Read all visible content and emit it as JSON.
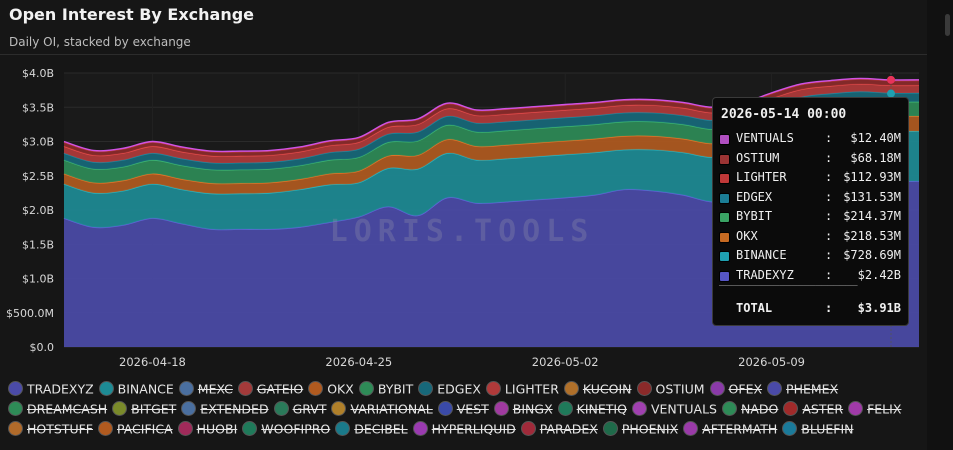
{
  "header": {
    "title": "Open Interest By Exchange",
    "subtitle": "Daily OI, stacked by exchange"
  },
  "watermark": "LORIS.TOOLS",
  "chart_data": {
    "type": "area",
    "stacked": true,
    "x_tick_labels": [
      "2026-04-18",
      "2026-04-25",
      "2026-05-02",
      "2026-05-09"
    ],
    "y_tick_labels": [
      "$0.0",
      "$500.0M",
      "$1.0B",
      "$1.5B",
      "$2.0B",
      "$2.5B",
      "$3.0B",
      "$3.5B",
      "$4.0B"
    ],
    "ylim": [
      0,
      4.0
    ],
    "y_unit": "B",
    "x": [
      "2026-04-15",
      "2026-04-16",
      "2026-04-17",
      "2026-04-18",
      "2026-04-19",
      "2026-04-20",
      "2026-04-21",
      "2026-04-22",
      "2026-04-23",
      "2026-04-24",
      "2026-04-25",
      "2026-04-26",
      "2026-04-27",
      "2026-04-28",
      "2026-04-29",
      "2026-04-30",
      "2026-05-01",
      "2026-05-02",
      "2026-05-03",
      "2026-05-04",
      "2026-05-05",
      "2026-05-06",
      "2026-05-07",
      "2026-05-08",
      "2026-05-09",
      "2026-05-10",
      "2026-05-11",
      "2026-05-12",
      "2026-05-13",
      "2026-05-14"
    ],
    "series": [
      {
        "name": "TRADEXYZ",
        "color": "#4b4ba8",
        "values": [
          1.88,
          1.75,
          1.78,
          1.88,
          1.8,
          1.72,
          1.72,
          1.72,
          1.75,
          1.82,
          1.9,
          2.05,
          1.92,
          2.18,
          2.1,
          2.12,
          2.15,
          2.18,
          2.22,
          2.3,
          2.28,
          2.22,
          2.12,
          2.18,
          2.32,
          2.4,
          2.42,
          2.44,
          2.42,
          2.42
        ]
      },
      {
        "name": "BINANCE",
        "color": "#1d8b95",
        "values": [
          0.5,
          0.5,
          0.5,
          0.5,
          0.5,
          0.52,
          0.52,
          0.53,
          0.55,
          0.55,
          0.5,
          0.56,
          0.68,
          0.65,
          0.63,
          0.63,
          0.63,
          0.63,
          0.62,
          0.58,
          0.6,
          0.62,
          0.65,
          0.65,
          0.65,
          0.7,
          0.72,
          0.73,
          0.73,
          0.73
        ]
      },
      {
        "name": "OKX",
        "color": "#b05a1f",
        "values": [
          0.15,
          0.15,
          0.15,
          0.15,
          0.15,
          0.15,
          0.15,
          0.15,
          0.15,
          0.16,
          0.17,
          0.18,
          0.2,
          0.2,
          0.2,
          0.2,
          0.2,
          0.2,
          0.2,
          0.2,
          0.2,
          0.2,
          0.2,
          0.2,
          0.21,
          0.21,
          0.22,
          0.22,
          0.22,
          0.22
        ]
      },
      {
        "name": "BYBIT",
        "color": "#2e8b57",
        "values": [
          0.2,
          0.2,
          0.2,
          0.2,
          0.2,
          0.2,
          0.2,
          0.2,
          0.2,
          0.2,
          0.2,
          0.2,
          0.21,
          0.21,
          0.21,
          0.21,
          0.21,
          0.21,
          0.21,
          0.21,
          0.21,
          0.21,
          0.21,
          0.21,
          0.21,
          0.21,
          0.21,
          0.21,
          0.21,
          0.21
        ]
      },
      {
        "name": "EDGEX",
        "color": "#17687a",
        "values": [
          0.1,
          0.1,
          0.1,
          0.1,
          0.1,
          0.1,
          0.1,
          0.1,
          0.1,
          0.11,
          0.12,
          0.12,
          0.13,
          0.13,
          0.13,
          0.13,
          0.13,
          0.13,
          0.13,
          0.13,
          0.13,
          0.13,
          0.13,
          0.13,
          0.13,
          0.13,
          0.13,
          0.13,
          0.13,
          0.13
        ]
      },
      {
        "name": "LIGHTER",
        "color": "#b03a3a",
        "values": [
          0.1,
          0.1,
          0.1,
          0.1,
          0.1,
          0.1,
          0.1,
          0.1,
          0.1,
          0.1,
          0.1,
          0.1,
          0.11,
          0.11,
          0.11,
          0.11,
          0.11,
          0.11,
          0.11,
          0.11,
          0.11,
          0.11,
          0.11,
          0.11,
          0.11,
          0.11,
          0.11,
          0.11,
          0.11,
          0.11
        ]
      },
      {
        "name": "OSTIUM",
        "color": "#8b2a2a",
        "values": [
          0.06,
          0.06,
          0.06,
          0.06,
          0.06,
          0.06,
          0.06,
          0.06,
          0.06,
          0.06,
          0.06,
          0.06,
          0.07,
          0.07,
          0.07,
          0.07,
          0.07,
          0.07,
          0.07,
          0.07,
          0.07,
          0.07,
          0.07,
          0.07,
          0.07,
          0.07,
          0.07,
          0.07,
          0.07,
          0.07
        ]
      },
      {
        "name": "VENTUALS",
        "color": "#a040b0",
        "values": [
          0.01,
          0.01,
          0.01,
          0.01,
          0.01,
          0.01,
          0.01,
          0.01,
          0.01,
          0.01,
          0.01,
          0.01,
          0.01,
          0.01,
          0.01,
          0.01,
          0.01,
          0.01,
          0.01,
          0.01,
          0.01,
          0.01,
          0.01,
          0.01,
          0.01,
          0.01,
          0.01,
          0.01,
          0.01,
          0.01
        ]
      }
    ],
    "tooltip": {
      "date": "2026-05-14 00:00",
      "rows": [
        {
          "name": "VENTUALS",
          "value": "$12.40M",
          "color": "#b04fc0"
        },
        {
          "name": "OSTIUM",
          "value": "$68.18M",
          "color": "#9c3434"
        },
        {
          "name": "LIGHTER",
          "value": "$112.93M",
          "color": "#c03838"
        },
        {
          "name": "EDGEX",
          "value": "$131.53M",
          "color": "#1b7d95"
        },
        {
          "name": "BYBIT",
          "value": "$214.37M",
          "color": "#3aa364"
        },
        {
          "name": "OKX",
          "value": "$218.53M",
          "color": "#c66a22"
        },
        {
          "name": "BINANCE",
          "value": "$728.69M",
          "color": "#1f9fb0"
        },
        {
          "name": "TRADEXYZ",
          "value": "$2.42B",
          "color": "#5656c4"
        }
      ],
      "separator": "───────────────────────",
      "total_label": "TOTAL",
      "total_value": "$3.91B"
    },
    "legend": [
      [
        {
          "name": "TRADEXYZ",
          "color": "#4b4ba8",
          "hidden": false
        },
        {
          "name": "BINANCE",
          "color": "#1d8b95",
          "hidden": false
        },
        {
          "name": "MEXC",
          "color": "#4a6fa0",
          "hidden": true
        },
        {
          "name": "GATEIO",
          "color": "#a33a3a",
          "hidden": true
        },
        {
          "name": "OKX",
          "color": "#b05a1f",
          "hidden": false
        },
        {
          "name": "BYBIT",
          "color": "#2e8b57",
          "hidden": false
        },
        {
          "name": "EDGEX",
          "color": "#17687a",
          "hidden": false
        },
        {
          "name": "LIGHTER",
          "color": "#b03a3a",
          "hidden": false
        },
        {
          "name": "KUCOIN",
          "color": "#b0702a",
          "hidden": true
        },
        {
          "name": "OSTIUM",
          "color": "#8b2a2a",
          "hidden": false
        },
        {
          "name": "OFEX",
          "color": "#8a3aa8",
          "hidden": true
        },
        {
          "name": "PHEMEX",
          "color": "#4a4aa8",
          "hidden": true
        }
      ],
      [
        {
          "name": "DREAMCASH",
          "color": "#2e8b57",
          "hidden": true
        },
        {
          "name": "BITGET",
          "color": "#7a8a2a",
          "hidden": true
        },
        {
          "name": "EXTENDED",
          "color": "#4a6fa0",
          "hidden": true
        },
        {
          "name": "GRVT",
          "color": "#2a7a5a",
          "hidden": true
        },
        {
          "name": "VARIATIONAL",
          "color": "#b0802a",
          "hidden": true
        },
        {
          "name": "VEST",
          "color": "#3a4aa8",
          "hidden": true
        },
        {
          "name": "BINGX",
          "color": "#a03aa0",
          "hidden": true
        },
        {
          "name": "KINETIQ",
          "color": "#1f7a5a",
          "hidden": true
        },
        {
          "name": "VENTUALS",
          "color": "#a040b0",
          "hidden": false
        },
        {
          "name": "NADO",
          "color": "#2e8b57",
          "hidden": true
        },
        {
          "name": "ASTER",
          "color": "#a02a2a",
          "hidden": true
        },
        {
          "name": "FELIX",
          "color": "#a03aa8",
          "hidden": true
        }
      ],
      [
        {
          "name": "HOTSTUFF",
          "color": "#b06a2a",
          "hidden": true
        },
        {
          "name": "PACIFICA",
          "color": "#b05a1f",
          "hidden": true
        },
        {
          "name": "HUOBI",
          "color": "#a02a5a",
          "hidden": true
        },
        {
          "name": "WOOFIPRO",
          "color": "#1f7a5a",
          "hidden": true
        },
        {
          "name": "DECIBEL",
          "color": "#1a7a8a",
          "hidden": true
        },
        {
          "name": "HYPERLIQUID",
          "color": "#9a3ab0",
          "hidden": true
        },
        {
          "name": "PARADEX",
          "color": "#a02a3a",
          "hidden": true
        },
        {
          "name": "PHOENIX",
          "color": "#1f6a4a",
          "hidden": true
        },
        {
          "name": "AFTERMATH",
          "color": "#9a3aa8",
          "hidden": true
        },
        {
          "name": "BLUEFIN",
          "color": "#1a7a9a",
          "hidden": true
        }
      ]
    ]
  }
}
